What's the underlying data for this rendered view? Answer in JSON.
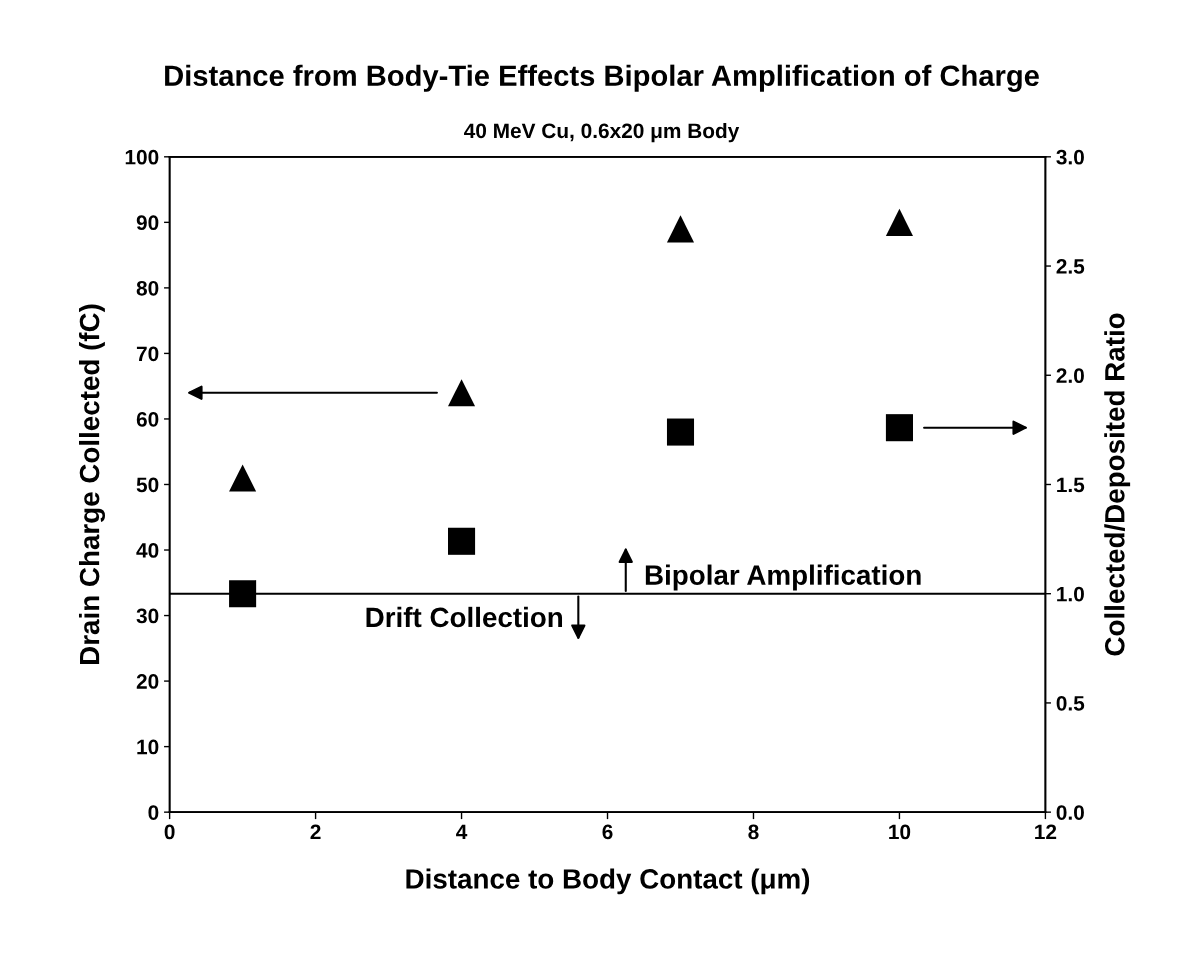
{
  "chart_data": {
    "type": "scatter",
    "title": "Distance from Body-Tie Effects Bipolar Amplification of Charge",
    "subtitle": "40 MeV Cu, 0.6x20 μm Body",
    "xlabel": "Distance to Body Contact (μm)",
    "ylabel": "Drain Charge Collected (fC)",
    "y2label": "Collected/Deposited Ratio",
    "x": [
      1,
      4,
      7,
      10
    ],
    "series": [
      {
        "color": "#000000",
        "marker": "triangle",
        "values": [
          51,
          64,
          89,
          90
        ]
      },
      {
        "color": "#000000",
        "marker": "square",
        "axis": "y2",
        "values": [
          1.0,
          1.24,
          1.74,
          1.76
        ]
      }
    ],
    "xlim": [
      0,
      12
    ],
    "xticks": [
      0,
      2,
      4,
      6,
      8,
      10,
      12
    ],
    "ylim": [
      0,
      100
    ],
    "yticks": [
      0,
      10,
      20,
      30,
      40,
      50,
      60,
      70,
      80,
      90,
      100
    ],
    "y2lim": [
      0,
      3
    ],
    "y2ticks": [
      {
        "value": 0,
        "label": "0.0"
      },
      {
        "value": 0.5,
        "label": "0.5"
      },
      {
        "value": 1,
        "label": "1.0"
      },
      {
        "value": 1.5,
        "label": "1.5"
      },
      {
        "value": 2,
        "label": "2.0"
      },
      {
        "value": 2.5,
        "label": "2.5"
      },
      {
        "value": 3,
        "label": "3.0"
      }
    ],
    "ref_lines": [
      {
        "axis": "y2",
        "value": 1.0,
        "color": "#000000",
        "line_style": "solid"
      }
    ],
    "annotations": [
      "Bipolar Amplification",
      "Drift Collection"
    ],
    "grid": false,
    "legend": false
  }
}
